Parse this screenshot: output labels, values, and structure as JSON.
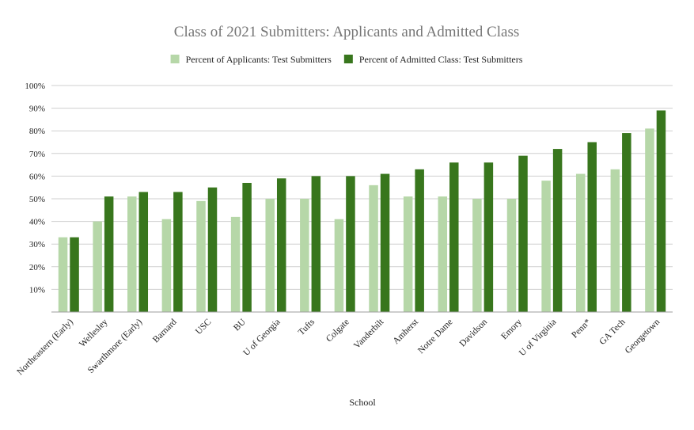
{
  "chart_data": {
    "type": "bar",
    "title": "Class of 2021 Submitters: Applicants and Admitted Class",
    "xlabel": "School",
    "ylabel": "",
    "ylim": [
      0,
      100
    ],
    "y_ticks": [
      "10%",
      "20%",
      "30%",
      "40%",
      "50%",
      "60%",
      "70%",
      "80%",
      "90%",
      "100%"
    ],
    "grid": true,
    "legend_position": "top",
    "categories": [
      "Northeastern (Early)",
      "Wellesley",
      "Swarthmore (Early)",
      "Barnard",
      "USC",
      "BU",
      "U of Georgia",
      "Tufts",
      "Colgate",
      "Vanderbilt",
      "Amherst",
      "Notre Dame",
      "Davidson",
      "Emory",
      "U of Virginia",
      "Penn*",
      "GA Tech",
      "Georgetown"
    ],
    "series": [
      {
        "name": "Percent of Applicants: Test Submitters",
        "color": "#b6d7a8",
        "values": [
          33,
          40,
          51,
          41,
          49,
          42,
          50,
          50,
          41,
          56,
          51,
          51,
          50,
          50,
          58,
          61,
          63,
          81
        ]
      },
      {
        "name": "Percent of Admitted Class: Test Submitters",
        "color": "#38761d",
        "values": [
          33,
          51,
          53,
          53,
          55,
          57,
          59,
          60,
          60,
          61,
          63,
          66,
          66,
          69,
          72,
          75,
          79,
          89
        ]
      }
    ]
  }
}
